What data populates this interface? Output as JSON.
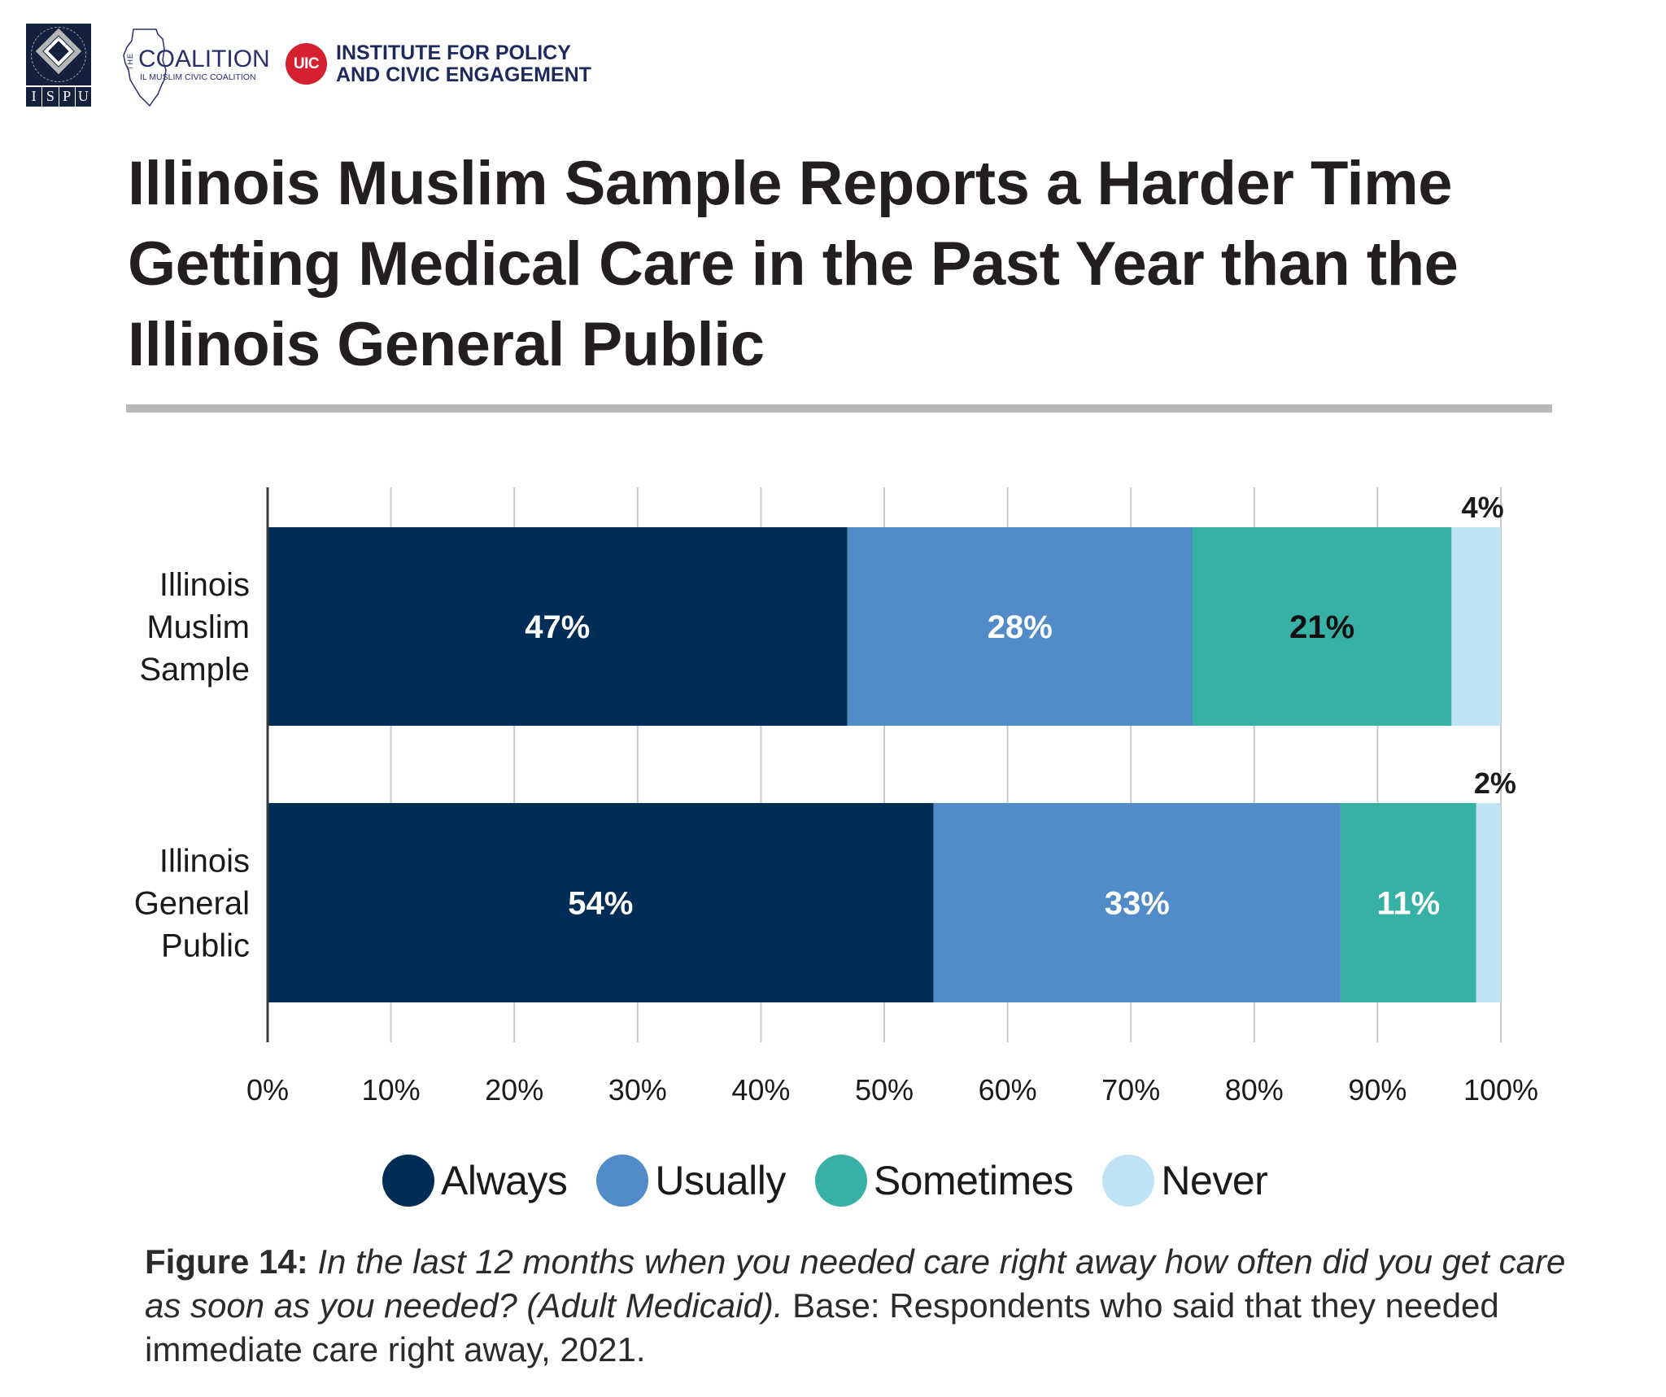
{
  "logos": {
    "ispu": {
      "letters": [
        "I",
        "S",
        "P",
        "U"
      ],
      "ring_text": "Institute for Social Policy and Understanding"
    },
    "coalition": {
      "the": "THE",
      "name": "COALITION",
      "subtitle": "IL MUSLIM CIVIC COALITION"
    },
    "uic": {
      "badge": "UIC",
      "line1": "INSTITUTE FOR POLICY",
      "line2": "AND CIVIC ENGAGEMENT"
    }
  },
  "title": "Illinois Muslim Sample Reports a Harder Time Getting Medical Care in the Past Year than the Illinois General Public",
  "chart_data": {
    "type": "bar",
    "orientation": "horizontal",
    "stacked": true,
    "title": "Illinois Muslim Sample Reports a Harder Time Getting Medical Care in the Past Year than the Illinois General Public",
    "xlabel": "",
    "ylabel": "",
    "xlim": [
      0,
      100
    ],
    "x_ticks": [
      "0%",
      "10%",
      "20%",
      "30%",
      "40%",
      "50%",
      "60%",
      "70%",
      "80%",
      "90%",
      "100%"
    ],
    "grid": true,
    "legend_position": "bottom",
    "categories": [
      {
        "label": "Illinois Muslim Sample",
        "lines": [
          "Illinois",
          "Muslim",
          "Sample"
        ]
      },
      {
        "label": "Illinois General Public",
        "lines": [
          "Illinois",
          "General",
          "Public"
        ]
      }
    ],
    "series": [
      {
        "name": "Always",
        "color": "#002d55",
        "label_color": "#ffffff",
        "values": [
          47,
          54
        ]
      },
      {
        "name": "Usually",
        "color": "#518bc8",
        "label_color": "#ffffff",
        "values": [
          28,
          33
        ]
      },
      {
        "name": "Sometimes",
        "color": "#37b0a5",
        "label_color_by_category": [
          "#111111",
          "#ffffff"
        ],
        "values": [
          21,
          11
        ]
      },
      {
        "name": "Never",
        "color": "#bde3f4",
        "label_outside": true,
        "values": [
          4,
          2
        ]
      }
    ]
  },
  "legend": [
    {
      "label": "Always",
      "color": "#002d55"
    },
    {
      "label": "Usually",
      "color": "#518bc8"
    },
    {
      "label": "Sometimes",
      "color": "#37b0a5"
    },
    {
      "label": "Never",
      "color": "#bde3f4"
    }
  ],
  "caption": {
    "figure_number": "Figure 14:",
    "question": " In the last 12 months when you needed care right away how often did you get care as soon as you needed? (Adult Medicaid).",
    "base": " Base: Respondents who said that they needed immediate care right away, 2021."
  }
}
